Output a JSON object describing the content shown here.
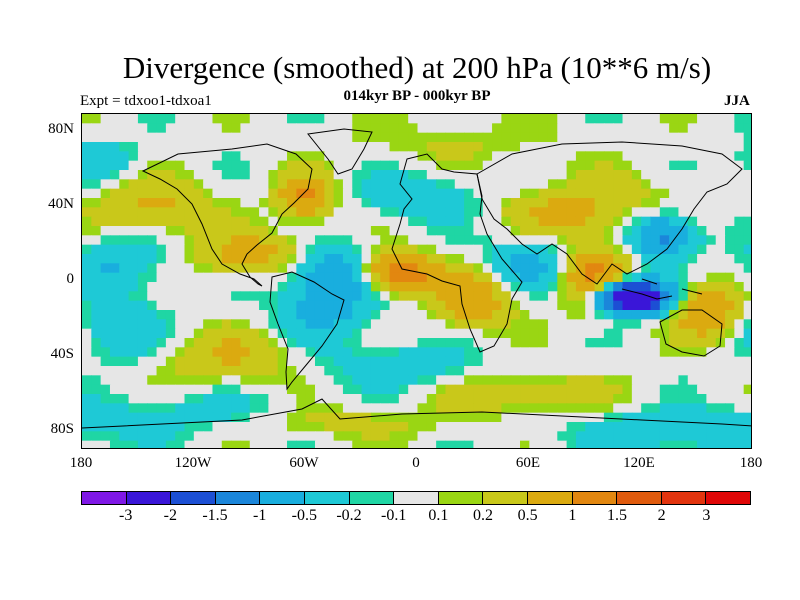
{
  "title": "Divergence (smoothed) at 200 hPa (10**6 m/s)",
  "subtitle": "014kyr BP - 000kyr BP",
  "experiment": "Expt = tdxoo1-tdxoa1",
  "season": "JJA",
  "lat_labels": [
    "80N",
    "40N",
    "0",
    "40S",
    "80S"
  ],
  "lon_labels": [
    "180",
    "120W",
    "60W",
    "0",
    "60E",
    "120E",
    "180"
  ],
  "colorbar": {
    "labels": [
      "-3",
      "-2",
      "-1.5",
      "-1",
      "-0.5",
      "-0.2",
      "-0.1",
      "0.1",
      "0.2",
      "0.5",
      "1",
      "1.5",
      "2",
      "3"
    ],
    "colors": [
      "#7f18e6",
      "#3a16d8",
      "#1c4fd4",
      "#1b86da",
      "#19aede",
      "#1ec9d6",
      "#1fd6a4",
      "#e6e6e6",
      "#9ad613",
      "#c9c81a",
      "#dbaa10",
      "#e28710",
      "#e05b0d",
      "#e2340e",
      "#e00707"
    ]
  },
  "chart_data": {
    "type": "heatmap",
    "title": "Divergence (smoothed) at 200 hPa (10**6 m/s)",
    "subtitle": "014kyr BP - 000kyr BP",
    "units": "10**6 m/s",
    "x_range": [
      -180,
      180
    ],
    "y_range": [
      -90,
      90
    ],
    "levels": [
      -3,
      -2,
      -1.5,
      -1,
      -0.5,
      -0.2,
      -0.1,
      0.1,
      0.2,
      0.5,
      1,
      1.5,
      2,
      3
    ],
    "features": [
      {
        "lon": 115,
        "lat": -8,
        "value": -3.2,
        "spread": [
          14,
          6
        ]
      },
      {
        "lon": 132,
        "lat": 25,
        "value": -1.2,
        "spread": [
          12,
          8
        ]
      },
      {
        "lon": -45,
        "lat": 5,
        "value": -0.9,
        "spread": [
          14,
          10
        ]
      },
      {
        "lon": -50,
        "lat": -15,
        "value": -0.6,
        "spread": [
          18,
          12
        ]
      },
      {
        "lon": 60,
        "lat": 10,
        "value": -0.6,
        "spread": [
          16,
          10
        ]
      },
      {
        "lon": -160,
        "lat": 10,
        "value": -0.5,
        "spread": [
          18,
          10
        ]
      },
      {
        "lon": -160,
        "lat": -25,
        "value": -0.5,
        "spread": [
          16,
          12
        ]
      },
      {
        "lon": 0,
        "lat": 45,
        "value": -0.5,
        "spread": [
          20,
          8
        ]
      },
      {
        "lon": -10,
        "lat": -45,
        "value": -0.4,
        "spread": [
          30,
          8
        ]
      },
      {
        "lon": 140,
        "lat": -80,
        "value": -0.5,
        "spread": [
          40,
          8
        ]
      },
      {
        "lon": -120,
        "lat": -70,
        "value": -0.3,
        "spread": [
          40,
          8
        ]
      },
      {
        "lon": -10,
        "lat": 5,
        "value": 1.5,
        "spread": [
          14,
          7
        ]
      },
      {
        "lon": 95,
        "lat": 2,
        "value": 1.2,
        "spread": [
          12,
          12
        ]
      },
      {
        "lon": 30,
        "lat": -10,
        "value": 0.9,
        "spread": [
          14,
          10
        ]
      },
      {
        "lon": -90,
        "lat": 15,
        "value": 0.7,
        "spread": [
          20,
          8
        ]
      },
      {
        "lon": 155,
        "lat": -15,
        "value": 1.0,
        "spread": [
          12,
          10
        ]
      },
      {
        "lon": -60,
        "lat": 45,
        "value": 1.1,
        "spread": [
          10,
          8
        ]
      },
      {
        "lon": -100,
        "lat": -40,
        "value": 0.5,
        "spread": [
          25,
          10
        ]
      },
      {
        "lon": 80,
        "lat": 35,
        "value": 0.5,
        "spread": [
          20,
          8
        ]
      },
      {
        "lon": 100,
        "lat": 45,
        "value": 0.3,
        "spread": [
          30,
          10
        ]
      },
      {
        "lon": -140,
        "lat": 40,
        "value": 0.6,
        "spread": [
          20,
          10
        ]
      },
      {
        "lon": 60,
        "lat": -60,
        "value": 0.4,
        "spread": [
          30,
          8
        ]
      },
      {
        "lon": -40,
        "lat": -75,
        "value": 0.3,
        "spread": [
          40,
          6
        ]
      },
      {
        "lon": 20,
        "lat": 75,
        "value": 0.2,
        "spread": [
          40,
          8
        ]
      },
      {
        "lon": -170,
        "lat": 65,
        "value": -0.4,
        "spread": [
          15,
          8
        ]
      }
    ]
  }
}
